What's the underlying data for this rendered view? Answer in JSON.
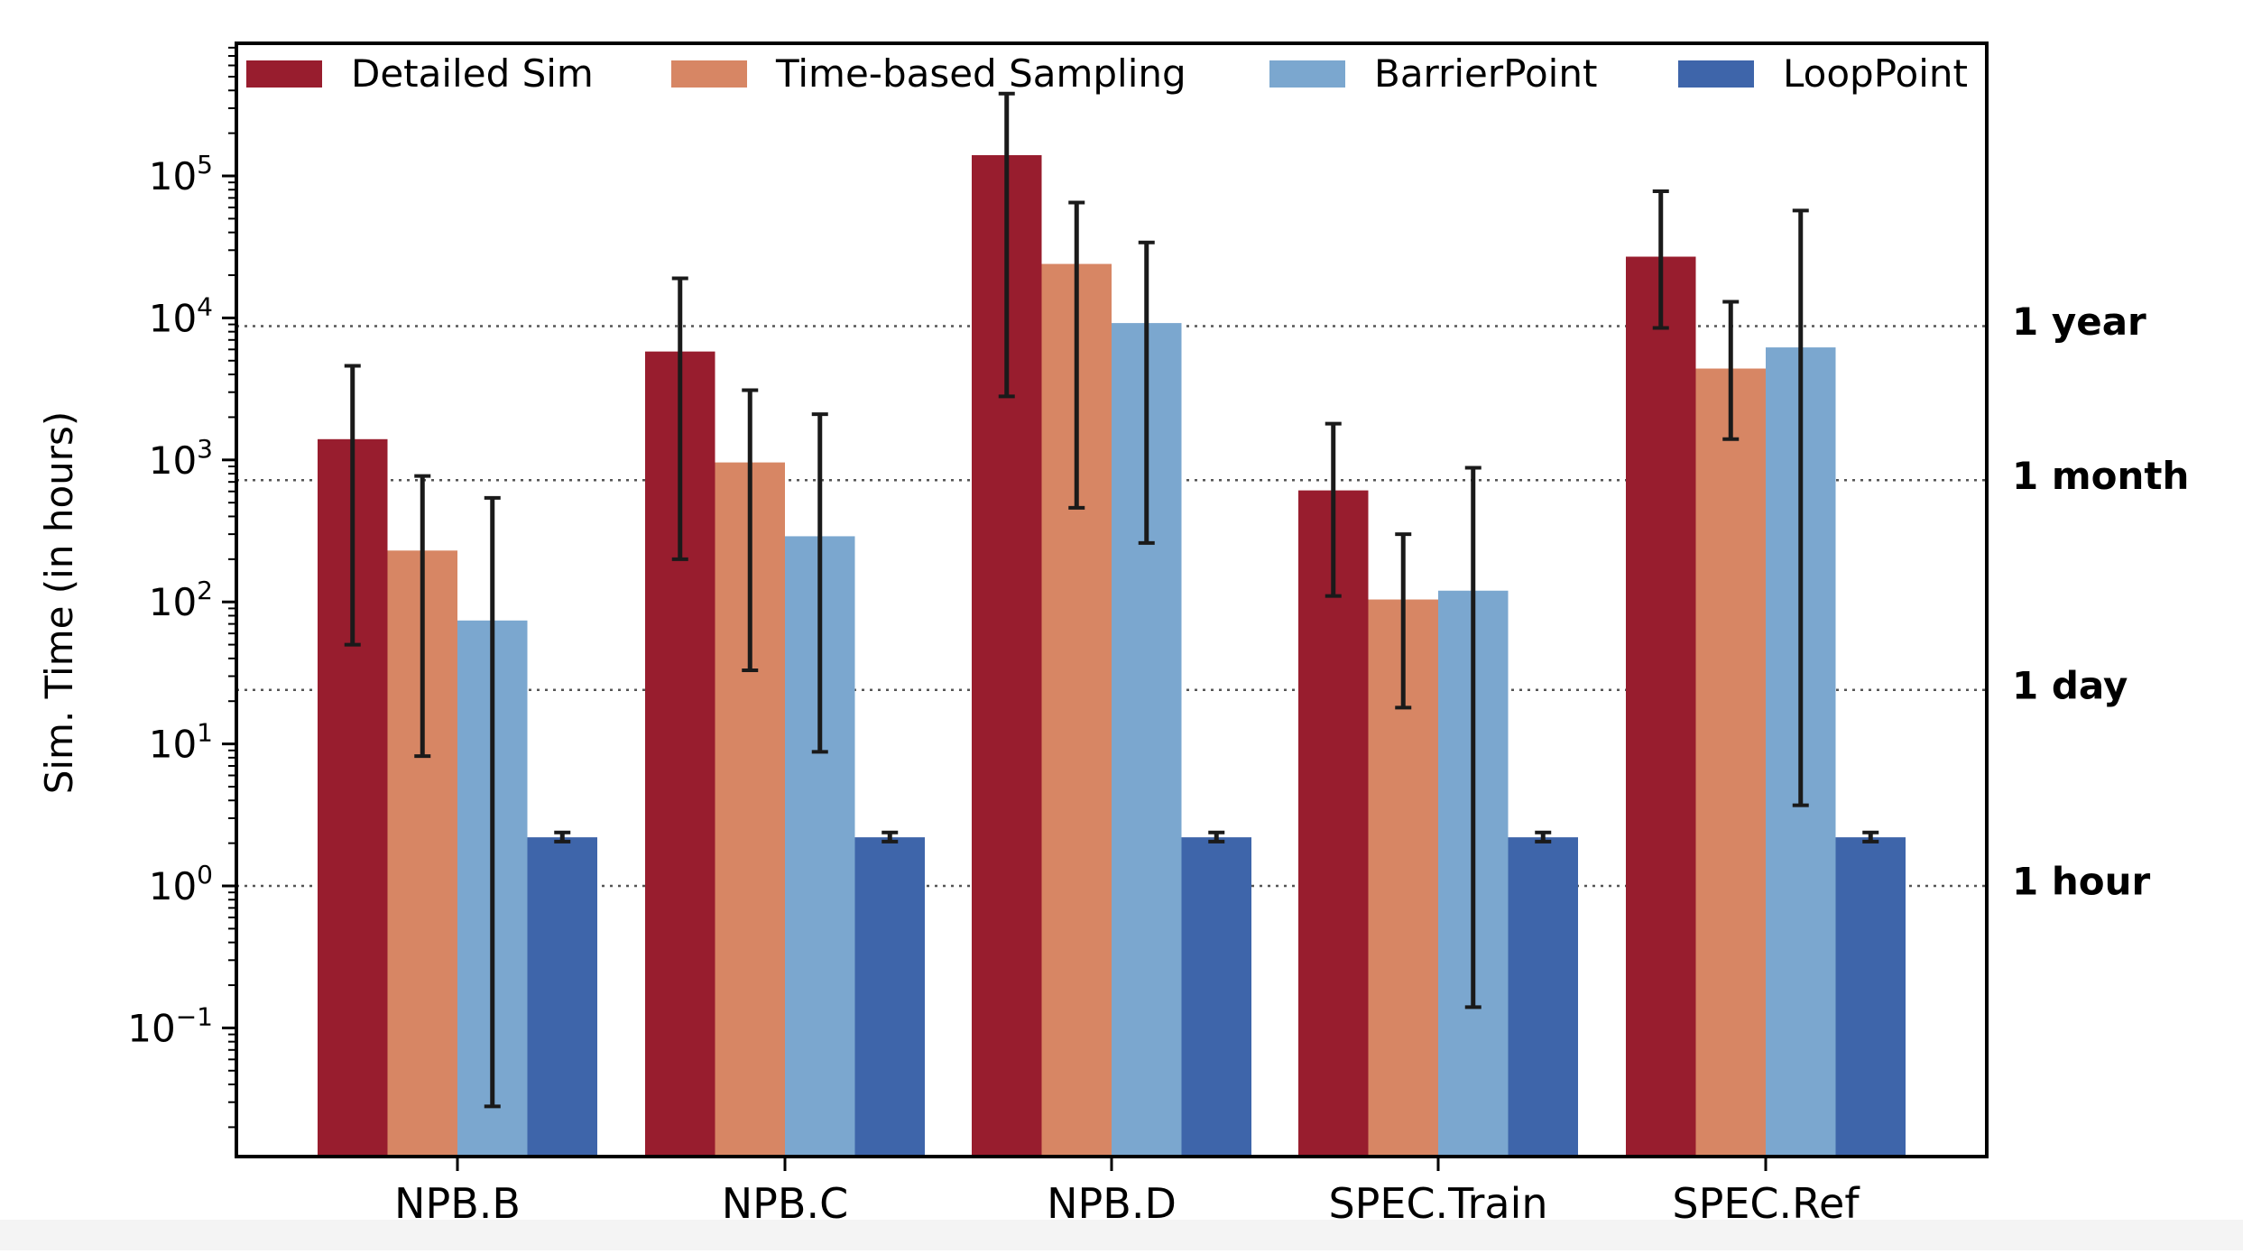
{
  "chart_data": {
    "type": "bar",
    "ylabel": "Sim. Time (in hours)",
    "yscale": "log",
    "ylim": [
      0.012,
      800000
    ],
    "y_ticks": [
      {
        "value": 0.1,
        "base": "10",
        "exp": "−1"
      },
      {
        "value": 1,
        "base": "10",
        "exp": "0"
      },
      {
        "value": 10,
        "base": "10",
        "exp": "1"
      },
      {
        "value": 100,
        "base": "10",
        "exp": "2"
      },
      {
        "value": 1000,
        "base": "10",
        "exp": "3"
      },
      {
        "value": 10000,
        "base": "10",
        "exp": "4"
      },
      {
        "value": 100000,
        "base": "10",
        "exp": "5"
      }
    ],
    "categories": [
      "NPB.B",
      "NPB.C",
      "NPB.D",
      "SPEC.Train",
      "SPEC.Ref"
    ],
    "series": [
      {
        "name": "Detailed Sim",
        "color": "#981d2e",
        "values": [
          1400,
          5800,
          140000,
          610,
          27000
        ],
        "err_low": [
          50,
          200,
          2800,
          110,
          8500
        ],
        "err_high": [
          4600,
          19000,
          380000,
          1800,
          78000
        ]
      },
      {
        "name": "Time-based Sampling",
        "color": "#d78664",
        "values": [
          230,
          960,
          24000,
          104,
          4400
        ],
        "err_low": [
          8.2,
          33,
          460,
          18,
          1400
        ],
        "err_high": [
          770,
          3100,
          65000,
          300,
          13000
        ]
      },
      {
        "name": "BarrierPoint",
        "color": "#7ba7cf",
        "values": [
          74,
          290,
          9200,
          120,
          6200
        ],
        "err_low": [
          0.028,
          8.8,
          260,
          0.14,
          3.7
        ],
        "err_high": [
          540,
          2100,
          34000,
          880,
          57000
        ]
      },
      {
        "name": "LoopPoint",
        "color": "#3e65aa",
        "values": [
          2.2,
          2.2,
          2.2,
          2.2,
          2.2
        ],
        "err_low": [
          2.05,
          2.05,
          2.05,
          2.05,
          2.05
        ],
        "err_high": [
          2.38,
          2.38,
          2.38,
          2.38,
          2.38
        ]
      }
    ],
    "reference_lines": [
      {
        "value": 8760,
        "label": "1 year"
      },
      {
        "value": 720,
        "label": "1 month"
      },
      {
        "value": 24,
        "label": "1 day"
      },
      {
        "value": 1,
        "label": "1 hour"
      }
    ],
    "legend_position": "top"
  }
}
